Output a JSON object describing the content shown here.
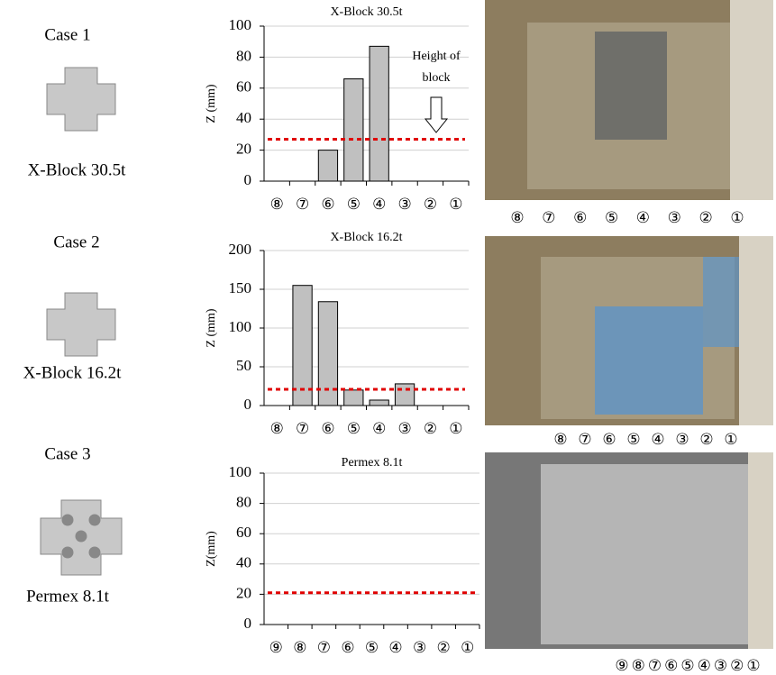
{
  "cases": [
    {
      "case_label": "Case 1",
      "block_label": "X-Block 30.5t",
      "photo_labels": [
        "⑧",
        "⑦",
        "⑥",
        "⑤",
        "④",
        "③",
        "②",
        "①"
      ]
    },
    {
      "case_label": "Case 2",
      "block_label": "X-Block 16.2t",
      "photo_labels": [
        "⑧",
        "⑦",
        "⑥",
        "⑤",
        "④",
        "③",
        "②",
        "①"
      ]
    },
    {
      "case_label": "Case 3",
      "block_label": "Permex 8.1t",
      "photo_labels": [
        "⑨",
        "⑧",
        "⑦",
        "⑥",
        "⑤",
        "④",
        "③",
        "②",
        "①"
      ]
    }
  ],
  "chart_data": [
    {
      "type": "bar",
      "title": "X-Block 30.5t",
      "y_label": "Z (mm)",
      "categories": [
        "⑧",
        "⑦",
        "⑥",
        "⑤",
        "④",
        "③",
        "②",
        "①"
      ],
      "values": [
        0,
        0,
        20,
        66,
        87,
        0,
        0,
        0
      ],
      "color": "#c0c0c0",
      "ylim": [
        0,
        100
      ],
      "yticks": [
        0,
        20,
        40,
        60,
        80,
        100
      ],
      "grid": true,
      "reference_line": {
        "value": 27,
        "color": "#e00000"
      },
      "annotation": [
        "Height of",
        "block"
      ]
    },
    {
      "type": "bar",
      "title": "X-Block 16.2t",
      "y_label": "Z (mm)",
      "categories": [
        "⑧",
        "⑦",
        "⑥",
        "⑤",
        "④",
        "③",
        "②",
        "①"
      ],
      "values": [
        0,
        155,
        134,
        20,
        7,
        28,
        0,
        0
      ],
      "color": "#c0c0c0",
      "ylim": [
        0,
        200
      ],
      "yticks": [
        0,
        50,
        100,
        150,
        200
      ],
      "grid": true,
      "reference_line": {
        "value": 21,
        "color": "#e00000"
      }
    },
    {
      "type": "bar",
      "title": "Permex 8.1t",
      "y_label": "Z(mm)",
      "categories": [
        "⑨",
        "⑧",
        "⑦",
        "⑥",
        "⑤",
        "④",
        "③",
        "②",
        "①"
      ],
      "values": [
        0,
        0,
        0,
        0,
        0,
        0,
        0,
        0,
        0
      ],
      "color": "#c0c0c0",
      "ylim": [
        0,
        100
      ],
      "yticks": [
        0,
        20,
        40,
        60,
        80,
        100
      ],
      "grid": true,
      "reference_line": {
        "value": 21,
        "color": "#e00000"
      }
    }
  ]
}
